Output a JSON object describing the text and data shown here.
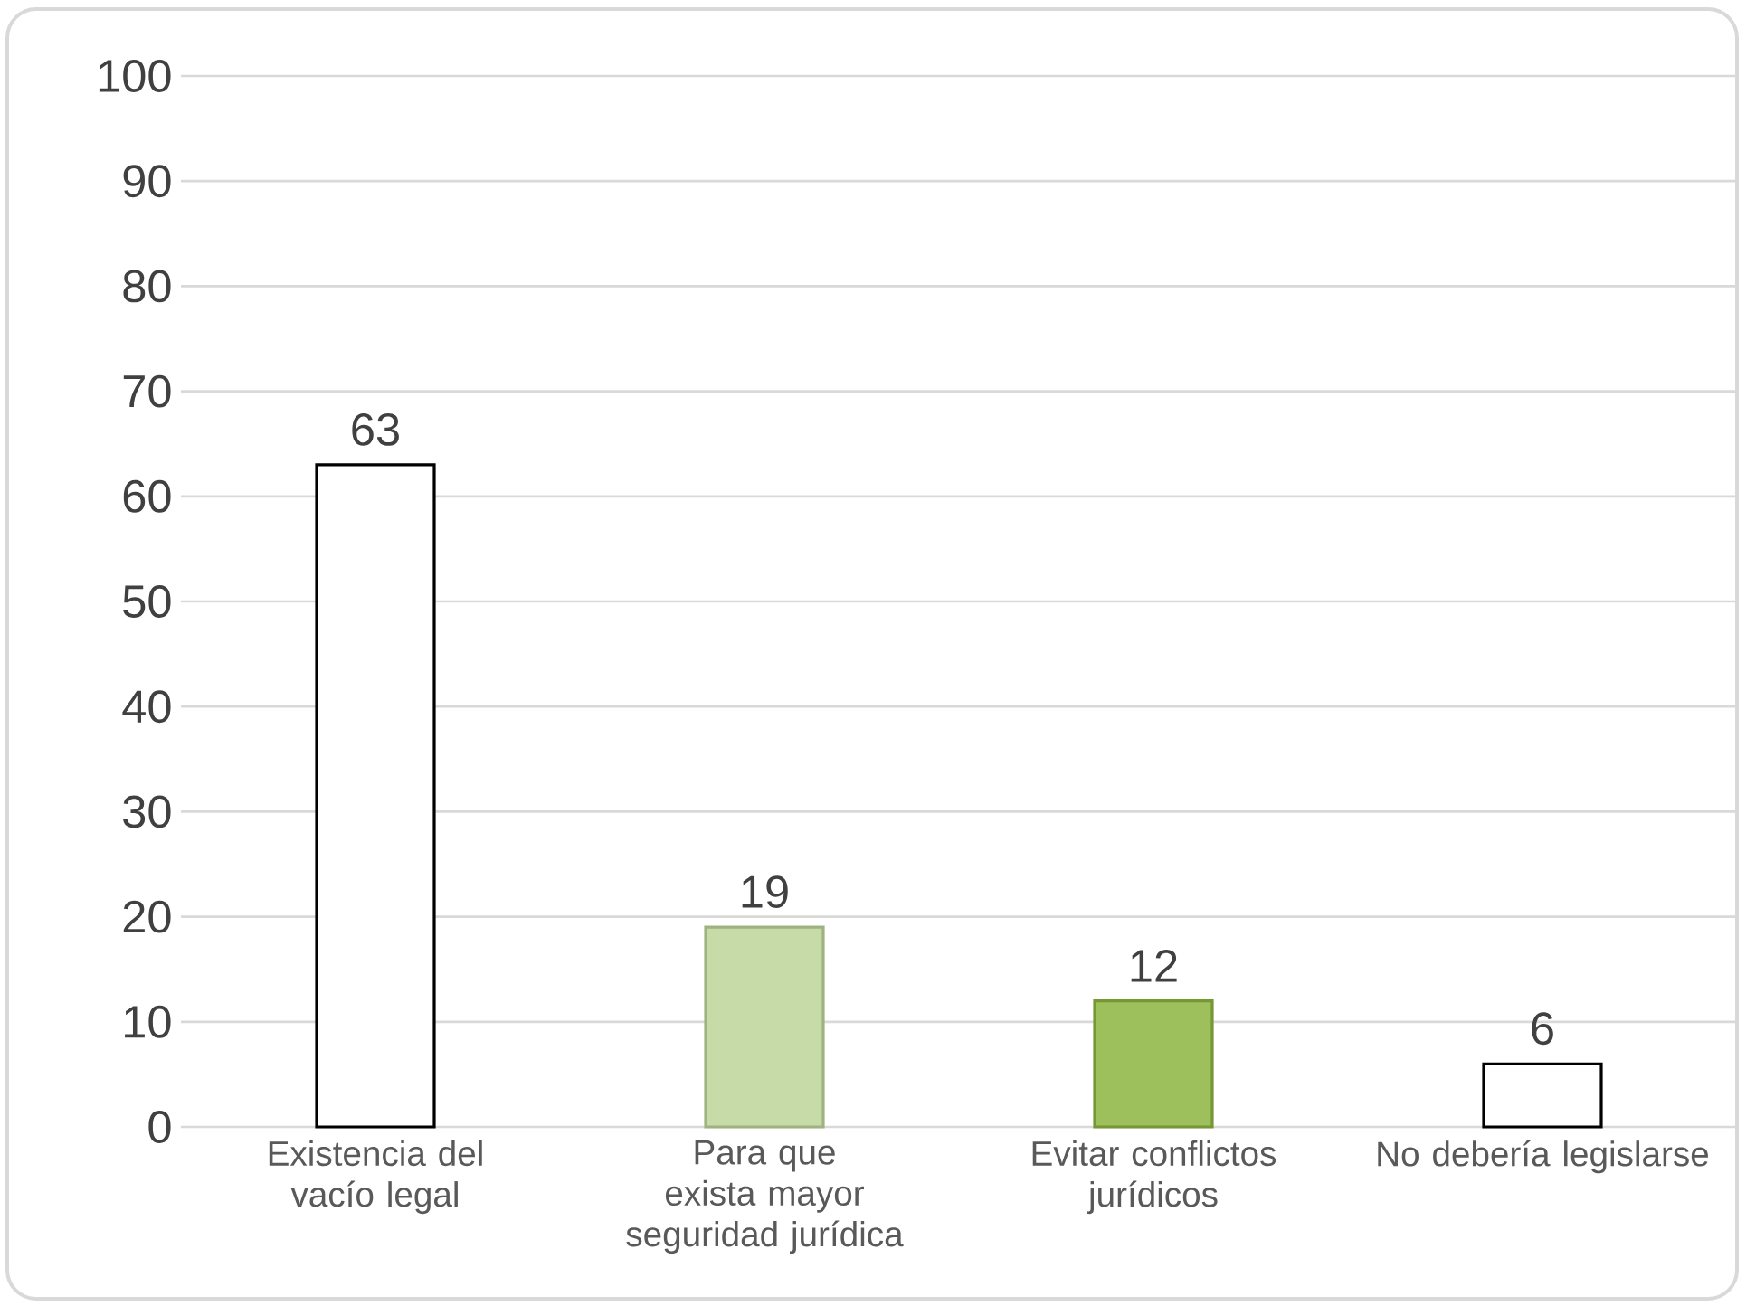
{
  "chart_data": {
    "type": "bar",
    "categories": [
      "Existencia del vacío legal",
      "Para que exista mayor seguridad jurídica",
      "Evitar conflictos jurídicos",
      "No debería legislarse"
    ],
    "values": [
      63,
      19,
      12,
      6
    ],
    "colors": [
      "#ffffff",
      "#c6dba8",
      "#9dbf5c",
      "#ffffff"
    ],
    "ylim": [
      0,
      100
    ],
    "yticks": [
      0,
      10,
      20,
      30,
      40,
      50,
      60,
      70,
      80,
      90,
      100
    ],
    "grid": "y",
    "data_labels": true
  }
}
